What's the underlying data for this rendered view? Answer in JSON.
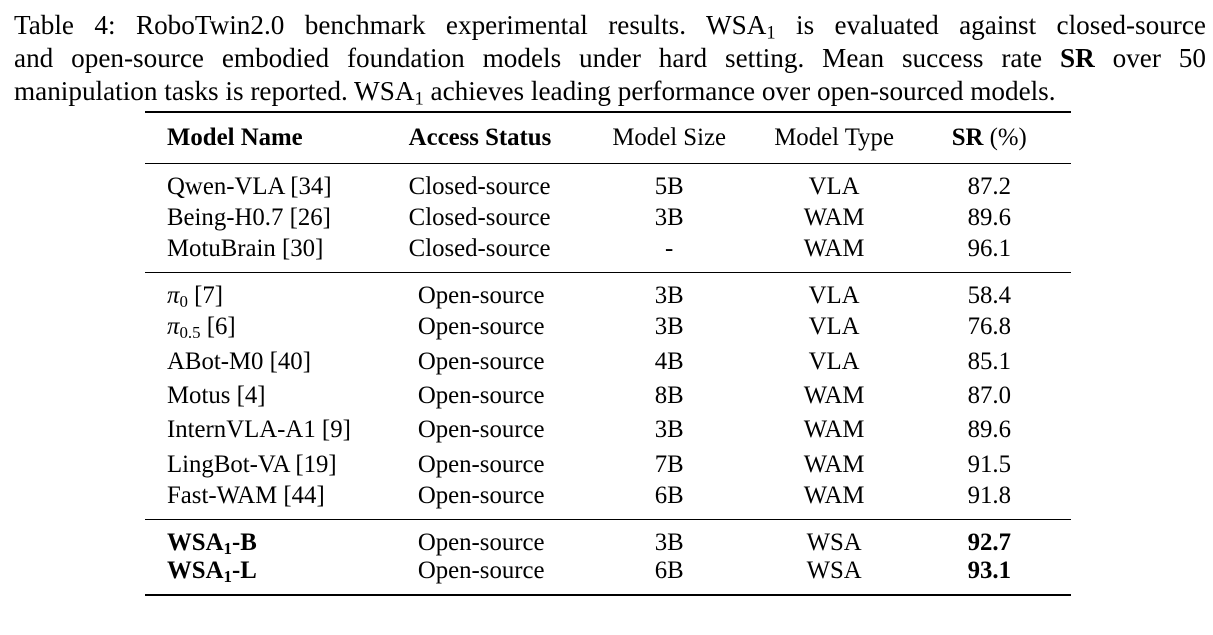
{
  "caption": {
    "line1_a": "Table 4: RoboTwin2.0 benchmark experimental results. WSA",
    "line1_sub": "1",
    "line1_b": " is evaluated against closed-source",
    "line2_a": "and open-source embodied foundation models under hard setting. Mean success rate ",
    "line2_bold": "SR",
    "line2_b": " over 50",
    "line3_a": "manipulation tasks is reported. WSA",
    "line3_sub": "1",
    "line3_b": " achieves leading performance over open-sourced models."
  },
  "table": {
    "headers": {
      "name": "Model Name",
      "access": "Access Status",
      "size": "Model Size",
      "type": "Model Type",
      "sr_bold": "SR",
      "sr_unit": " (%)"
    },
    "closed": [
      {
        "name": "Qwen-VLA [34]",
        "access": "Closed-source",
        "size": "5B",
        "type": "VLA",
        "sr": "87.2"
      },
      {
        "name": "Being-H0.7 [26]",
        "access": "Closed-source",
        "size": "3B",
        "type": "WAM",
        "sr": "89.6"
      },
      {
        "name": "MotuBrain [30]",
        "access": "Closed-source",
        "size": "-",
        "type": "WAM",
        "sr": "96.1"
      }
    ],
    "open": [
      {
        "name_base": "π",
        "name_sub": "0",
        "name_ref": " [7]",
        "access": "Open-source",
        "size": "3B",
        "type": "VLA",
        "sr": "58.4"
      },
      {
        "name_base": "π",
        "name_sub": "0.5",
        "name_ref": " [6]",
        "access": "Open-source",
        "size": "3B",
        "type": "VLA",
        "sr": "76.8"
      },
      {
        "name": "ABot-M0 [40]",
        "access": "Open-source",
        "size": "4B",
        "type": "VLA",
        "sr": "85.1"
      },
      {
        "name": "Motus [4]",
        "access": "Open-source",
        "size": "8B",
        "type": "WAM",
        "sr": "87.0"
      },
      {
        "name": "InternVLA-A1 [9]",
        "access": "Open-source",
        "size": "3B",
        "type": "WAM",
        "sr": "89.6"
      },
      {
        "name": "LingBot-VA [19]",
        "access": "Open-source",
        "size": "7B",
        "type": "WAM",
        "sr": "91.5"
      },
      {
        "name": "Fast-WAM [44]",
        "access": "Open-source",
        "size": "6B",
        "type": "WAM",
        "sr": "91.8"
      }
    ],
    "ours": [
      {
        "name_base": "WSA",
        "name_sub": "1",
        "name_suffix": "-B",
        "access": "Open-source",
        "size": "3B",
        "type": "WSA",
        "sr": "92.7"
      },
      {
        "name_base": "WSA",
        "name_sub": "1",
        "name_suffix": "-L",
        "access": "Open-source",
        "size": "6B",
        "type": "WSA",
        "sr": "93.1"
      }
    ]
  }
}
